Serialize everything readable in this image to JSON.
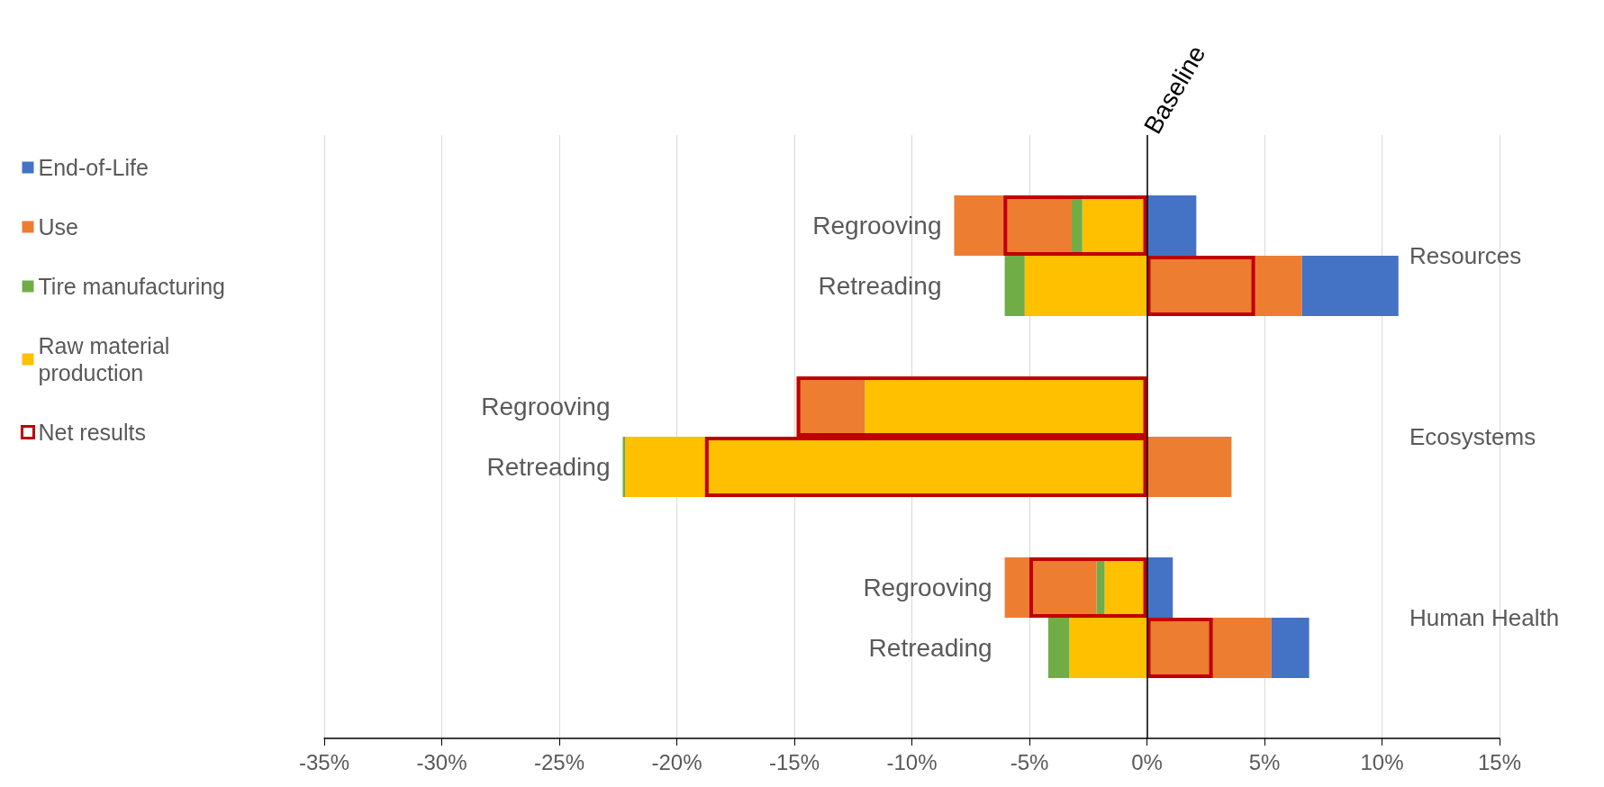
{
  "chart_data": [
    {
      "type": "bar",
      "orientation": "horizontal",
      "categories": [
        null,
        "Regrooving",
        "Retreading"
      ],
      "series": [
        {
          "name": "Raw material production",
          "color": "#ffc000",
          "base": [
            null,
            0,
            0
          ],
          "values": [
            null,
            -2.75,
            -5.2
          ]
        },
        {
          "name": "Tire manufacturing",
          "color": "#70ad47",
          "base": [
            null,
            -2.75,
            -5.2
          ],
          "values": [
            null,
            -0.45,
            -0.85
          ]
        },
        {
          "name": "Use",
          "color": "#ed7d31",
          "base": [
            null,
            -3.2,
            0
          ],
          "values": [
            null,
            -5.0,
            6.6
          ]
        },
        {
          "name": "End-of-Life",
          "color": "#4472c4",
          "base": [
            null,
            0,
            6.6
          ],
          "values": [
            null,
            2.1,
            4.1
          ]
        },
        {
          "name": "Net results",
          "color": "#c00000",
          "values": [
            null,
            -6.1,
            4.6
          ]
        }
      ],
      "xlim": [
        -35,
        15
      ],
      "xticks": [
        {
          "value": -35,
          "label": null
        },
        {
          "value": -30,
          "label": null
        },
        {
          "value": -25,
          "label": null
        },
        {
          "value": -20,
          "label": null
        },
        {
          "value": -15,
          "label": null
        },
        {
          "value": -10,
          "label": null
        },
        {
          "value": -5,
          "label": null
        },
        {
          "value": 0,
          "label": null
        },
        {
          "value": 5,
          "label": null
        },
        {
          "value": 10,
          "label": null
        },
        {
          "value": 15,
          "label": null
        }
      ],
      "tick_labels": "y",
      "grid": "x",
      "legend": "left",
      "ref_lines": [
        {
          "axis": "x",
          "value": 0,
          "label": "Baseline",
          "color": "#000000"
        }
      ],
      "annotations": [
        "Resources"
      ]
    },
    {
      "type": "bar",
      "orientation": "horizontal",
      "categories": [
        null,
        "Regrooving",
        "Retreading"
      ],
      "series": [
        {
          "color": "#ffc000",
          "base": [
            null,
            0,
            0
          ],
          "values": [
            null,
            -12.0,
            -22.2
          ]
        },
        {
          "color": "#70ad47",
          "base": [
            null,
            null,
            -22.2
          ],
          "values": [
            null,
            null,
            -0.1
          ]
        },
        {
          "color": "#ed7d31",
          "base": [
            null,
            -12.0,
            0
          ],
          "values": [
            null,
            -2.9,
            3.6
          ]
        },
        {
          "color": "#c00000",
          "values": [
            null,
            -14.9,
            -18.8
          ]
        }
      ],
      "xlim": [
        -35,
        15
      ],
      "xticks": [
        {
          "value": -35,
          "label": null
        },
        {
          "value": -30,
          "label": null
        },
        {
          "value": -25,
          "label": null
        },
        {
          "value": -20,
          "label": null
        },
        {
          "value": -15,
          "label": null
        },
        {
          "value": -10,
          "label": null
        },
        {
          "value": -5,
          "label": null
        },
        {
          "value": 0,
          "label": null
        },
        {
          "value": 5,
          "label": null
        },
        {
          "value": 10,
          "label": null
        },
        {
          "value": 15,
          "label": null
        }
      ],
      "tick_labels": "y",
      "grid": "x",
      "ref_lines": [
        {
          "axis": "x",
          "value": 0,
          "color": "#000000"
        }
      ],
      "annotations": [
        "Ecosystems"
      ]
    },
    {
      "type": "bar",
      "orientation": "horizontal",
      "categories": [
        null,
        "Regrooving",
        "Retreading",
        null
      ],
      "series": [
        {
          "color": "#ffc000",
          "base": [
            null,
            0,
            0,
            null
          ],
          "values": [
            null,
            -1.8,
            -3.3,
            null
          ]
        },
        {
          "color": "#70ad47",
          "base": [
            null,
            -1.8,
            -3.3,
            null
          ],
          "values": [
            null,
            -0.35,
            -0.9,
            null
          ]
        },
        {
          "color": "#ed7d31",
          "base": [
            null,
            -2.15,
            0,
            null
          ],
          "values": [
            null,
            -3.9,
            5.3,
            null
          ]
        },
        {
          "color": "#4472c4",
          "base": [
            null,
            0,
            5.3,
            null
          ],
          "values": [
            null,
            1.1,
            1.6,
            null
          ]
        },
        {
          "color": "#c00000",
          "values": [
            null,
            -5.0,
            2.8,
            null
          ]
        }
      ],
      "xlim": [
        -35,
        15
      ],
      "xticks": [
        {
          "value": -35,
          "label": "-35%"
        },
        {
          "value": -30,
          "label": "-30%"
        },
        {
          "value": -25,
          "label": "-25%"
        },
        {
          "value": -20,
          "label": "-20%"
        },
        {
          "value": -15,
          "label": "-15%"
        },
        {
          "value": -10,
          "label": "-10%"
        },
        {
          "value": -5,
          "label": "-5%"
        },
        {
          "value": 0,
          "label": "0%"
        },
        {
          "value": 5,
          "label": "5%"
        },
        {
          "value": 10,
          "label": "10%"
        },
        {
          "value": 15,
          "label": "15%"
        }
      ],
      "grid": "x",
      "ref_lines": [
        {
          "axis": "x",
          "value": 0,
          "color": "#000000"
        }
      ],
      "annotations": [
        "Human Health"
      ]
    }
  ]
}
